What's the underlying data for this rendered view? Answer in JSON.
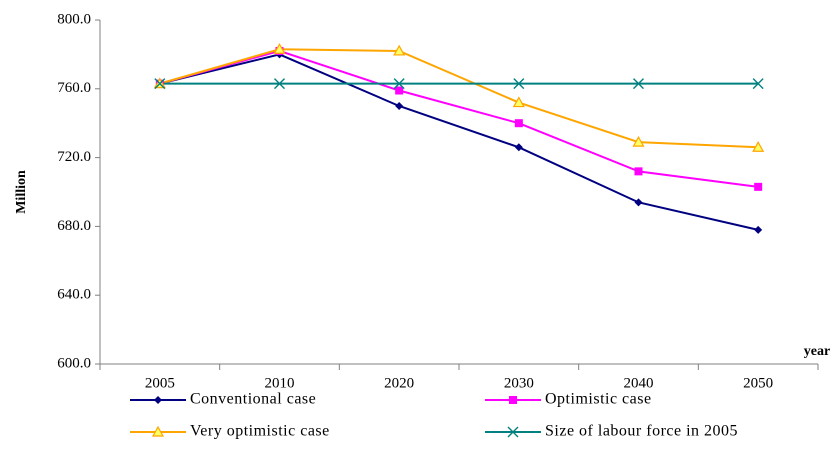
{
  "chart_data": {
    "type": "line",
    "y_label": "Million",
    "x_label": "year",
    "categories": [
      "2005",
      "2010",
      "2020",
      "2030",
      "2040",
      "2050"
    ],
    "series": [
      {
        "name": "Conventional case",
        "color": "#000080",
        "marker": "diamond",
        "values": [
          763,
          780,
          750,
          726,
          694,
          678
        ]
      },
      {
        "name": "Optimistic case",
        "color": "#ff00ff",
        "marker": "square",
        "values": [
          763,
          782,
          759,
          740,
          712,
          703
        ]
      },
      {
        "name": "Very optimistic case",
        "color": "#ffa500",
        "marker": "triangle",
        "values": [
          763,
          783,
          782,
          752,
          729,
          726
        ]
      },
      {
        "name": "Size of labour force in 2005",
        "color": "#008080",
        "marker": "x",
        "values": [
          763,
          763,
          763,
          763,
          763,
          763
        ]
      }
    ],
    "ylim": [
      600,
      800
    ],
    "yticks": [
      {
        "value": 600,
        "label": "600.0"
      },
      {
        "value": 640,
        "label": "640.0"
      },
      {
        "value": 680,
        "label": "680.0"
      },
      {
        "value": 720,
        "label": "720.0"
      },
      {
        "value": 760,
        "label": "760.0"
      },
      {
        "value": 800,
        "label": "800.0"
      }
    ]
  }
}
